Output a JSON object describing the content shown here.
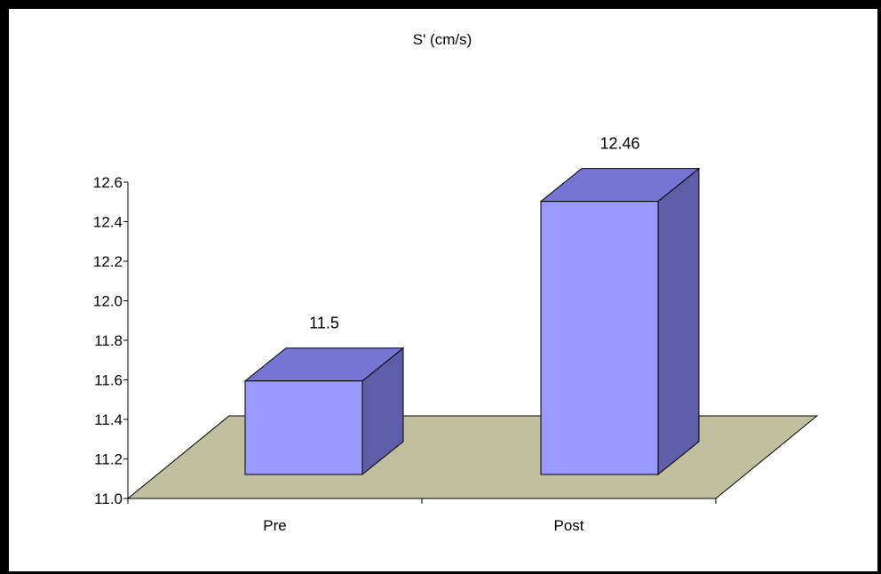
{
  "chart_data": {
    "type": "bar",
    "title": "S' (cm/s)",
    "categories": [
      "Pre",
      "Post"
    ],
    "values": [
      11.5,
      12.46
    ],
    "value_labels": [
      "11.5",
      "12.46"
    ],
    "ylim": [
      11.0,
      12.6
    ],
    "yticks": [
      "11.0",
      "11.2",
      "11.4",
      "11.6",
      "11.8",
      "12.0",
      "12.2",
      "12.4",
      "12.6"
    ],
    "xlabel": "",
    "ylabel": "",
    "grid": false,
    "legend": "none",
    "colors": {
      "bar_front": "#9999ff",
      "bar_top": "#7575d4",
      "bar_side": "#5e5ea8",
      "floor": "#c0c09e"
    }
  }
}
